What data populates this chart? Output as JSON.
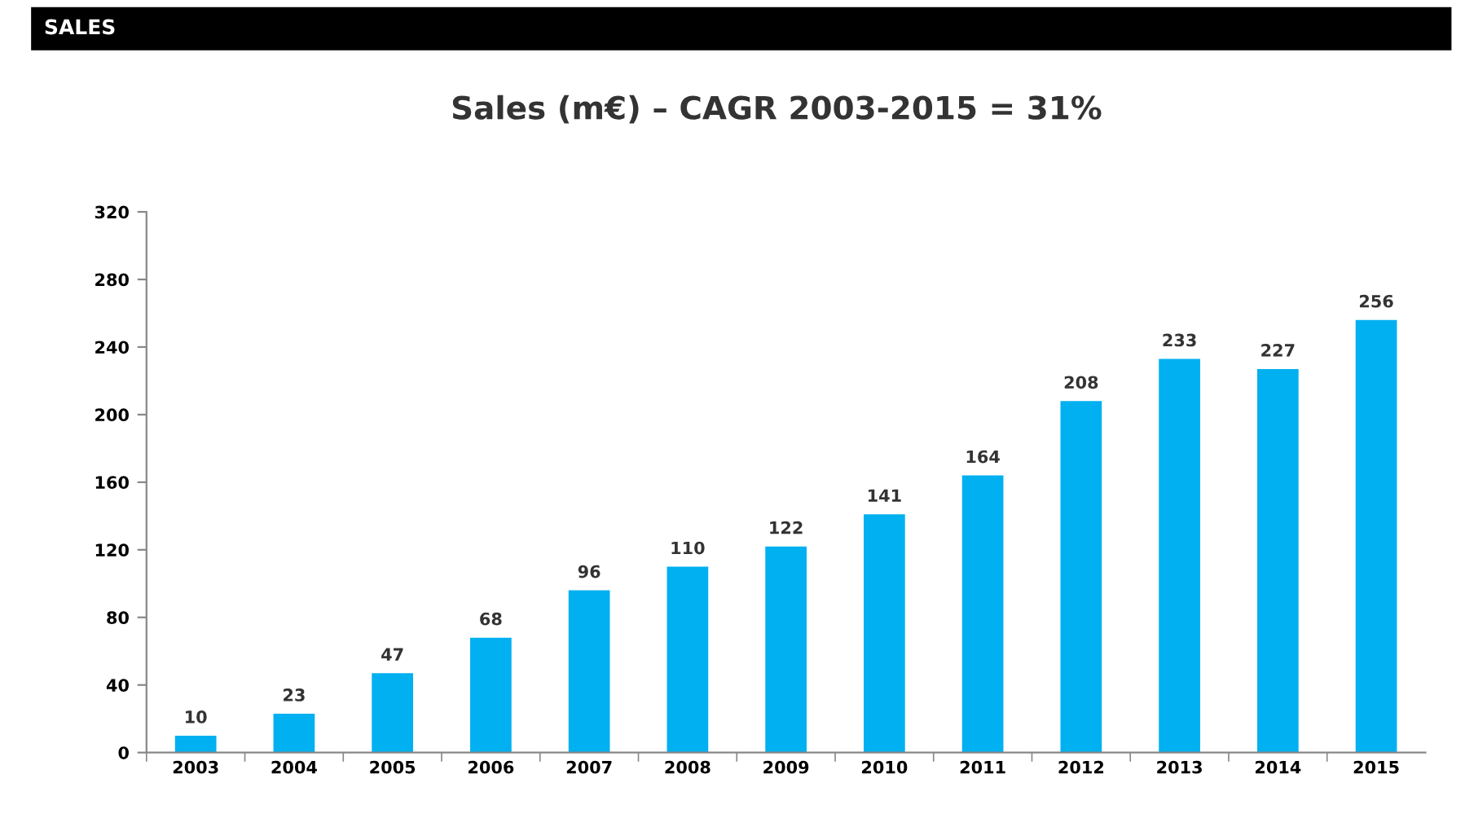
{
  "chart_data": {
    "type": "bar",
    "title": "Sales (m€) – CAGR 2003-2015 = 31%",
    "annotations": [
      "SALES"
    ],
    "categories": [
      "2003",
      "2004",
      "2005",
      "2006",
      "2007",
      "2008",
      "2009",
      "2010",
      "2011",
      "2012",
      "2013",
      "2014",
      "2015"
    ],
    "values": [
      10,
      23,
      47,
      68,
      96,
      110,
      122,
      141,
      164,
      208,
      233,
      227,
      256
    ],
    "color": "#00b0f0",
    "ylim": [
      0,
      320
    ],
    "yticks": [
      0,
      40,
      80,
      120,
      160,
      200,
      240,
      280,
      320
    ],
    "grid": false,
    "data_labels": true
  }
}
